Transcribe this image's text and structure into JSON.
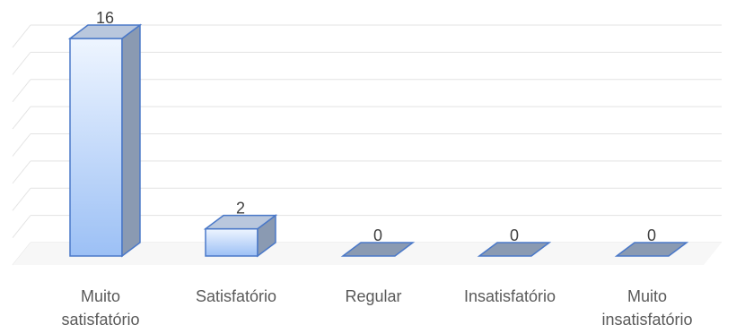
{
  "chart_data": {
    "type": "bar",
    "style": "3d-column",
    "title": "",
    "xlabel": "",
    "ylabel": "",
    "grid": true,
    "ylim": [
      0,
      16
    ],
    "categories": [
      [
        "Muito",
        "satisfatório"
      ],
      [
        "Satisfatório"
      ],
      [
        "Regular"
      ],
      [
        "Insatisfatório"
      ],
      [
        "Muito",
        "insatisfatório"
      ]
    ],
    "values": [
      16,
      2,
      0,
      0,
      0
    ],
    "data_labels": [
      "16",
      "2",
      "0",
      "0",
      "0"
    ]
  },
  "colors": {
    "bar_front_top": "#eef5ff",
    "bar_front_bottom": "#9cc0f5",
    "bar_side": "#8a9ab2",
    "bar_top": "#b9c7dd",
    "bar_edge": "#4a78c8",
    "gridline": "#e3e3e3",
    "floor": "#e0e0e0"
  }
}
